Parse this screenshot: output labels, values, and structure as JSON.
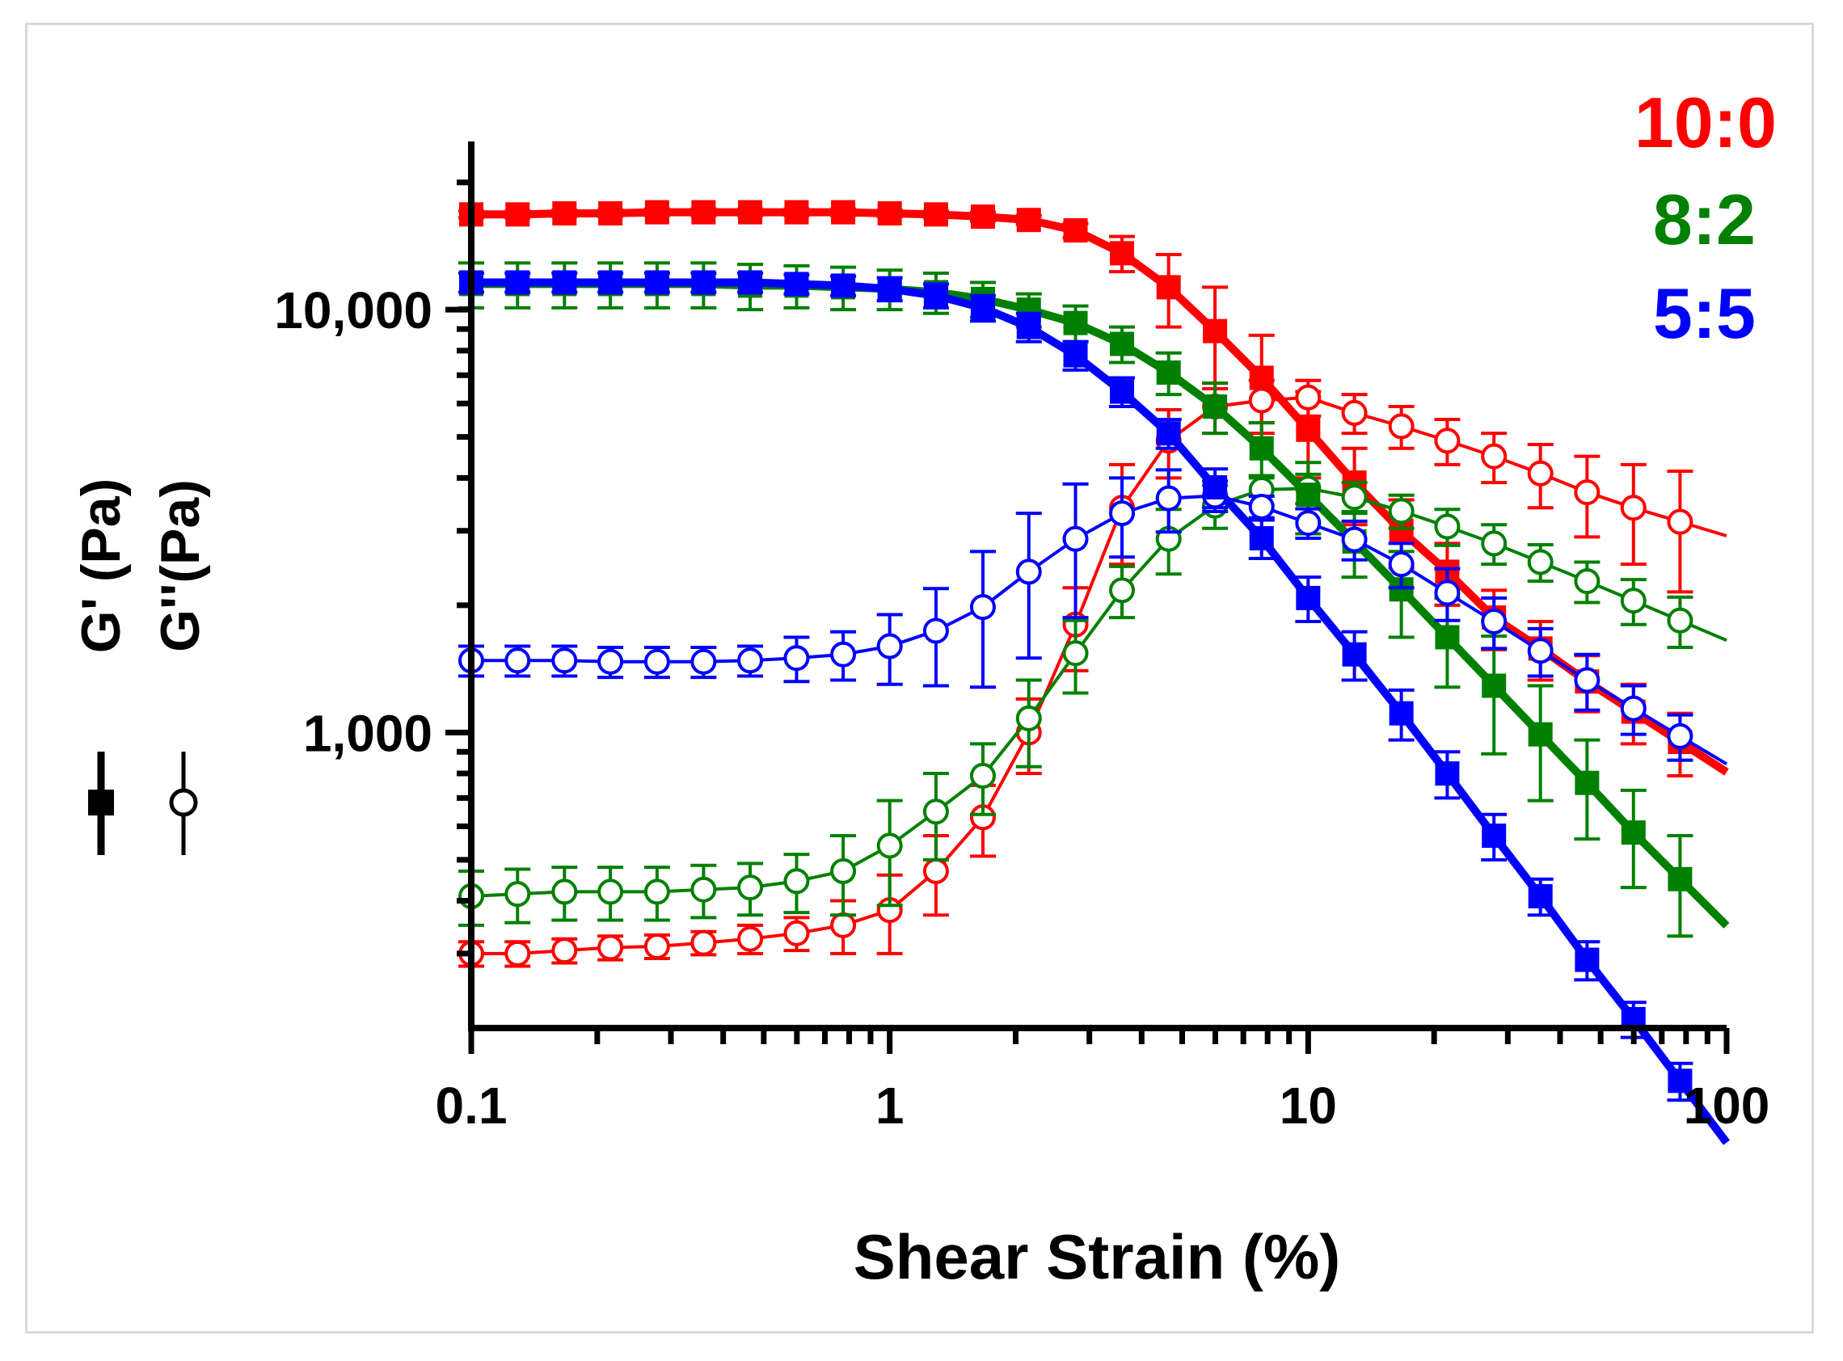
{
  "chart_data": {
    "type": "line",
    "xlabel": "Shear Strain (%)",
    "ylabel_storage": "G' (Pa)",
    "ylabel_loss": "G''(Pa)",
    "x_scale": "log",
    "y_scale": "log",
    "xlim": [
      0.1,
      100
    ],
    "ylim": [
      200,
      25000
    ],
    "x_ticks": [
      0.1,
      1,
      10,
      100
    ],
    "x_tick_labels": [
      "0.1",
      "1",
      "10",
      "100"
    ],
    "y_ticks": [
      1000,
      10000
    ],
    "y_tick_labels": [
      "1,000",
      "10,000"
    ],
    "grid": false,
    "legend_position": "top-right",
    "x": [
      0.1,
      0.129,
      0.167,
      0.215,
      0.278,
      0.359,
      0.464,
      0.599,
      0.774,
      1.0,
      1.29,
      1.67,
      2.15,
      2.78,
      3.59,
      4.64,
      5.99,
      7.74,
      10.0,
      12.9,
      16.7,
      21.5,
      27.8,
      35.9,
      46.4,
      59.9,
      77.4
    ],
    "series": [
      {
        "name": "10:0",
        "color": "#ff0000",
        "g_storage": [
          16800,
          16800,
          16900,
          16900,
          17000,
          17000,
          17000,
          17000,
          17000,
          16900,
          16800,
          16600,
          16300,
          15400,
          13600,
          11300,
          8900,
          6900,
          5200,
          3900,
          3000,
          2400,
          1870,
          1580,
          1320,
          1120,
          950
        ],
        "g_storage_err": [
          300,
          300,
          300,
          300,
          300,
          300,
          300,
          300,
          300,
          300,
          300,
          400,
          400,
          600,
          1300,
          2200,
          2400,
          1800,
          1200,
          800,
          550,
          400,
          300,
          250,
          200,
          180,
          160
        ],
        "g_loss": [
          300,
          300,
          305,
          310,
          312,
          318,
          325,
          335,
          350,
          380,
          470,
          630,
          1000,
          1800,
          3400,
          4900,
          5900,
          6100,
          6200,
          5700,
          5300,
          4900,
          4500,
          4100,
          3700,
          3400,
          3150
        ],
        "g_loss_err": [
          20,
          20,
          20,
          20,
          20,
          20,
          25,
          30,
          50,
          80,
          100,
          120,
          200,
          400,
          900,
          900,
          800,
          700,
          600,
          600,
          600,
          600,
          600,
          700,
          800,
          900,
          1000
        ]
      },
      {
        "name": "8:2",
        "color": "#008000",
        "g_storage": [
          11500,
          11500,
          11500,
          11500,
          11500,
          11500,
          11400,
          11400,
          11300,
          11200,
          11000,
          10600,
          10000,
          9300,
          8300,
          7100,
          5900,
          4700,
          3650,
          2830,
          2180,
          1680,
          1290,
          990,
          760,
          580,
          450
        ],
        "g_storage_err": [
          1400,
          1400,
          1400,
          1400,
          1400,
          1400,
          1400,
          1300,
          1300,
          1200,
          1200,
          1000,
          900,
          900,
          800,
          800,
          800,
          700,
          700,
          500,
          500,
          400,
          400,
          300,
          200,
          150,
          120
        ],
        "g_loss": [
          410,
          415,
          420,
          420,
          420,
          425,
          430,
          445,
          470,
          540,
          650,
          790,
          1080,
          1540,
          2170,
          2870,
          3440,
          3750,
          3780,
          3600,
          3340,
          3070,
          2800,
          2530,
          2280,
          2050,
          1840
        ],
        "g_loss_err": [
          60,
          60,
          60,
          60,
          60,
          60,
          60,
          70,
          100,
          150,
          150,
          150,
          250,
          300,
          300,
          500,
          400,
          300,
          300,
          300,
          300,
          300,
          300,
          250,
          250,
          250,
          250
        ]
      },
      {
        "name": "5:5",
        "color": "#0000ff",
        "g_storage": [
          11600,
          11600,
          11600,
          11600,
          11600,
          11600,
          11600,
          11500,
          11400,
          11200,
          10800,
          10100,
          9100,
          7800,
          6400,
          5100,
          3800,
          2880,
          2080,
          1530,
          1110,
          800,
          570,
          410,
          290,
          210,
          150
        ],
        "g_storage_err": [
          600,
          600,
          600,
          600,
          600,
          600,
          600,
          600,
          600,
          700,
          700,
          700,
          700,
          600,
          500,
          400,
          400,
          300,
          250,
          200,
          150,
          100,
          70,
          40,
          30,
          20,
          15
        ],
        "g_loss": [
          1480,
          1480,
          1480,
          1470,
          1470,
          1470,
          1480,
          1500,
          1530,
          1600,
          1740,
          1980,
          2400,
          2870,
          3300,
          3580,
          3630,
          3420,
          3130,
          2860,
          2500,
          2140,
          1830,
          1560,
          1330,
          1140,
          980
        ],
        "g_loss_err": [
          120,
          120,
          120,
          120,
          120,
          120,
          120,
          180,
          200,
          300,
          450,
          700,
          900,
          1000,
          700,
          600,
          300,
          200,
          250,
          300,
          300,
          300,
          250,
          200,
          200,
          150,
          120
        ]
      }
    ]
  }
}
